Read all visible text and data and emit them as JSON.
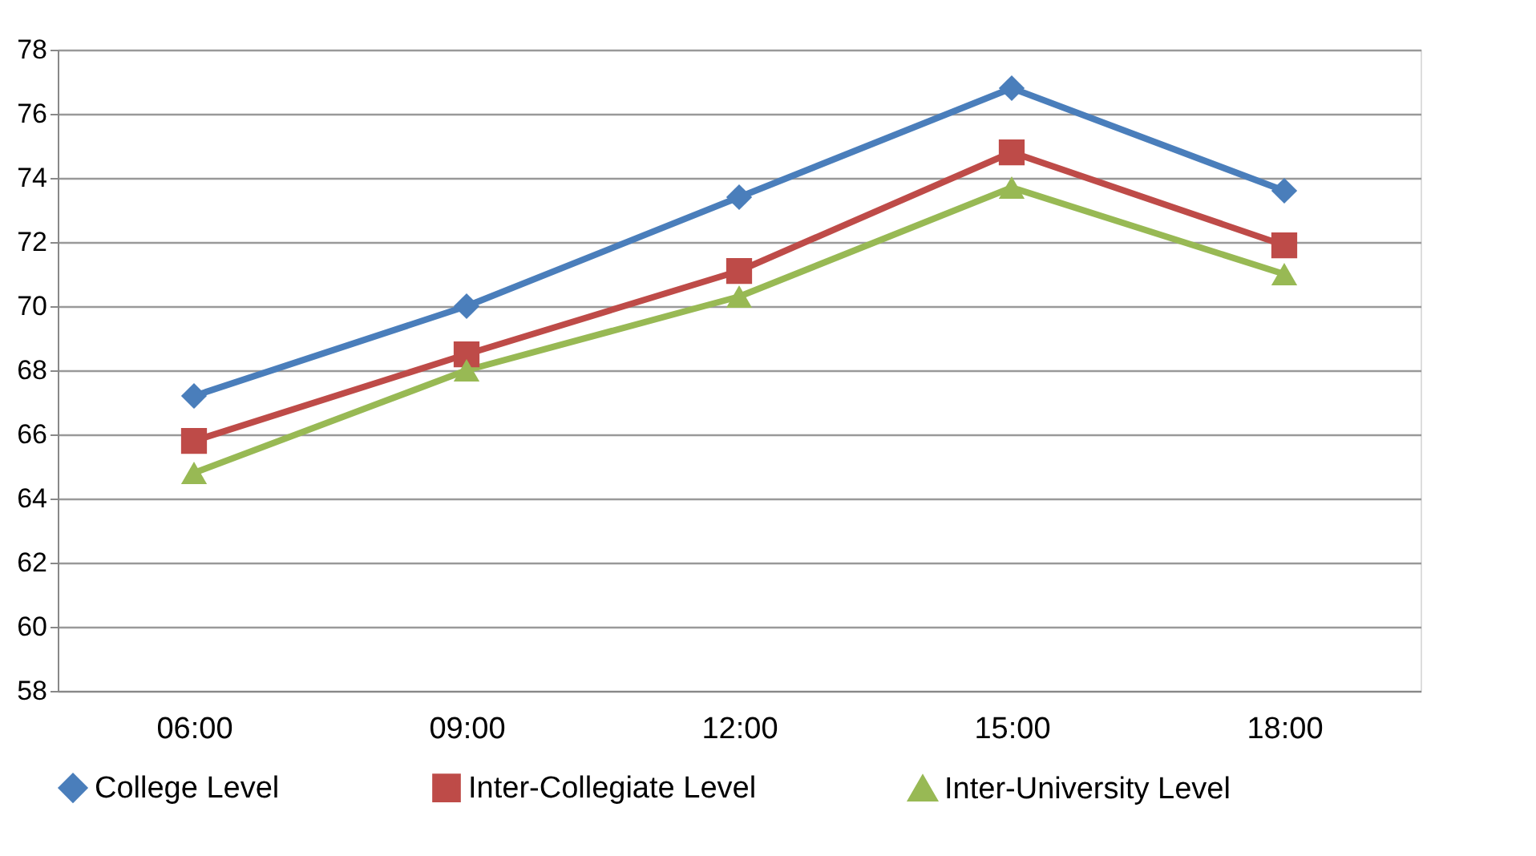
{
  "chart_data": {
    "type": "line",
    "categories": [
      "06:00",
      "09:00",
      "12:00",
      "15:00",
      "18:00"
    ],
    "series": [
      {
        "name": "College Level",
        "color": "#4a7ebb",
        "marker": "diamond",
        "values": [
          67.2,
          70.0,
          73.4,
          76.8,
          73.6
        ]
      },
      {
        "name": "Inter-Collegiate Level",
        "color": "#be4b48",
        "marker": "square",
        "values": [
          65.8,
          68.5,
          71.1,
          74.8,
          71.9
        ]
      },
      {
        "name": "Inter-University Level",
        "color": "#98b954",
        "marker": "triangle",
        "values": [
          64.8,
          68.0,
          70.3,
          73.7,
          71.0
        ]
      }
    ],
    "ylim": [
      58,
      78
    ],
    "yticks": [
      58,
      60,
      62,
      64,
      66,
      68,
      70,
      72,
      74,
      76,
      78
    ],
    "grid": "y",
    "legend": "bottom",
    "line_style": "solid"
  }
}
